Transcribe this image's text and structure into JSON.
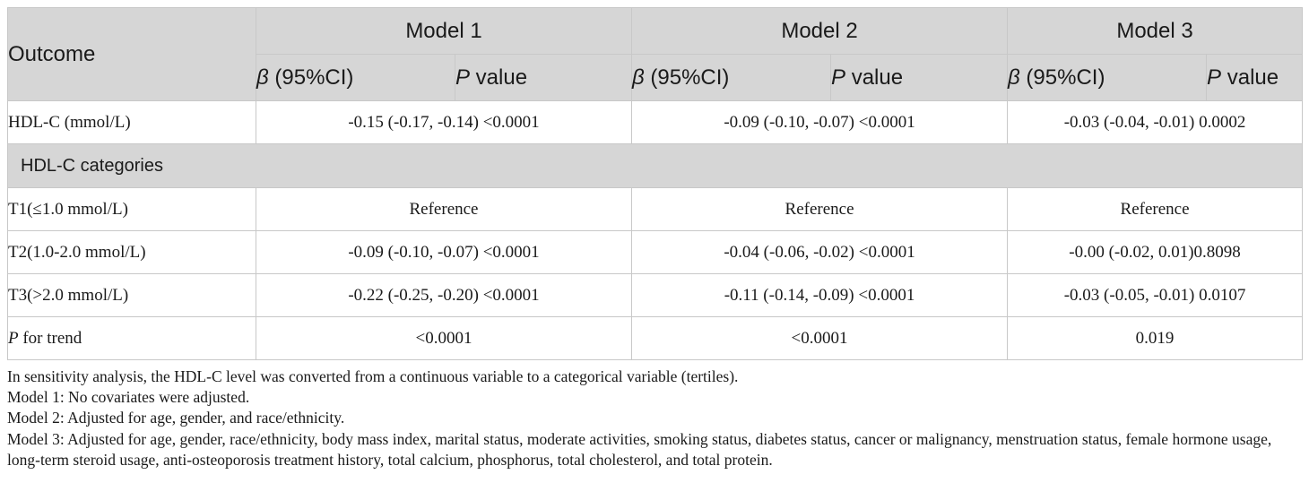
{
  "table": {
    "outcome_header": "Outcome",
    "models": [
      "Model 1",
      "Model 2",
      "Model 3"
    ],
    "sub_header": {
      "beta_symbol": "β",
      "beta_rest": " (95%CI)",
      "p_symbol": "P",
      "p_rest": " value"
    },
    "rows": [
      {
        "label": "HDL-C (mmol/L)",
        "cells": [
          "-0.15 (-0.17, -0.14) <0.0001",
          "-0.09 (-0.10, -0.07) <0.0001",
          "-0.03 (-0.04, -0.01) 0.0002"
        ]
      }
    ],
    "category_header": "HDL-C categories",
    "category_rows": [
      {
        "label": "T1(≤1.0 mmol/L)",
        "cells": [
          "Reference",
          "Reference",
          "Reference"
        ]
      },
      {
        "label": "T2(1.0-2.0 mmol/L)",
        "cells": [
          "-0.09 (-0.10, -0.07) <0.0001",
          "-0.04 (-0.06, -0.02) <0.0001",
          "-0.00 (-0.02, 0.01)0.8098"
        ]
      },
      {
        "label": "T3(>2.0 mmol/L)",
        "cells": [
          "-0.22 (-0.25, -0.20) <0.0001",
          "-0.11 (-0.14, -0.09) <0.0001",
          "-0.03 (-0.05, -0.01) 0.0107"
        ]
      }
    ],
    "trend_row": {
      "label_italic": "P",
      "label_rest": " for trend",
      "cells": [
        "<0.0001",
        "<0.0001",
        "0.019"
      ]
    }
  },
  "notes": [
    "In sensitivity analysis, the HDL-C level was converted from a continuous variable to a categorical variable (tertiles).",
    "Model 1: No covariates were adjusted.",
    "Model 2: Adjusted for age, gender, and race/ethnicity.",
    "Model 3: Adjusted for age, gender, race/ethnicity, body mass index, marital status, moderate activities, smoking status, diabetes status, cancer or malignancy, menstruation status, female hormone usage, long-term steroid usage, anti-osteoporosis treatment history, total calcium, phosphorus, total cholesterol, and total protein."
  ],
  "colors": {
    "header_bg": "#d6d6d6",
    "border": "#c8c8c8",
    "text": "#1a1a1a"
  }
}
